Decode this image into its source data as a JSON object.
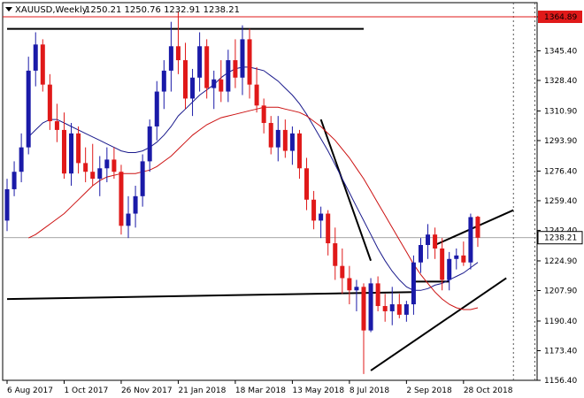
{
  "header": {
    "symbol": "XAUUSD,Weekly",
    "ohlc": "1250.21 1250.76 1232.91 1238.21"
  },
  "colors": {
    "bull": "#1a1aa8",
    "bear": "#e01919",
    "ma_fast": "#1a1a8c",
    "ma_slow": "#cc1111",
    "price_label_bg": "#ffffff",
    "high_label_bg": "#e01919",
    "grid": "#d8d8d8",
    "trendline": "#000000"
  },
  "chart_data": {
    "type": "candlestick",
    "timeframe": "Weekly",
    "ylim": [
      1156.4,
      1373
    ],
    "y_ticks": [
      "1364.89",
      "1345.40",
      "1328.40",
      "1310.90",
      "1293.90",
      "1276.40",
      "1259.40",
      "1242.40",
      "1224.90",
      "1207.90",
      "1190.40",
      "1173.40",
      "1156.40"
    ],
    "x_ticks": [
      "6 Aug 2017",
      "1 Oct 2017",
      "26 Nov 2017",
      "21 Jan 2018",
      "18 Mar 2018",
      "13 May 2018",
      "8 Jul 2018",
      "2 Sep 2018",
      "28 Oct 2018"
    ],
    "x_tick_index": [
      0,
      8,
      16,
      24,
      32,
      40,
      48,
      56,
      64
    ],
    "current_price": "1238.21",
    "high_line": "1364.89",
    "candles": [
      [
        1248,
        1272,
        1242,
        1266
      ],
      [
        1266,
        1282,
        1262,
        1276
      ],
      [
        1276,
        1298,
        1270,
        1290
      ],
      [
        1290,
        1342,
        1286,
        1334
      ],
      [
        1334,
        1356,
        1325,
        1349
      ],
      [
        1349,
        1352,
        1322,
        1326
      ],
      [
        1326,
        1332,
        1300,
        1305
      ],
      [
        1305,
        1315,
        1293,
        1300
      ],
      [
        1300,
        1310,
        1272,
        1275
      ],
      [
        1275,
        1304,
        1268,
        1298
      ],
      [
        1298,
        1302,
        1275,
        1281
      ],
      [
        1281,
        1290,
        1270,
        1276
      ],
      [
        1276,
        1292,
        1268,
        1272
      ],
      [
        1272,
        1285,
        1262,
        1278
      ],
      [
        1278,
        1290,
        1270,
        1283
      ],
      [
        1283,
        1290,
        1272,
        1276
      ],
      [
        1276,
        1280,
        1240,
        1245
      ],
      [
        1245,
        1262,
        1238,
        1252
      ],
      [
        1252,
        1268,
        1244,
        1262
      ],
      [
        1262,
        1286,
        1256,
        1282
      ],
      [
        1282,
        1306,
        1276,
        1302
      ],
      [
        1302,
        1328,
        1294,
        1322
      ],
      [
        1322,
        1340,
        1312,
        1334
      ],
      [
        1334,
        1362,
        1322,
        1348
      ],
      [
        1348,
        1368,
        1332,
        1340
      ],
      [
        1340,
        1350,
        1312,
        1318
      ],
      [
        1318,
        1335,
        1308,
        1330
      ],
      [
        1330,
        1356,
        1322,
        1348
      ],
      [
        1348,
        1352,
        1318,
        1324
      ],
      [
        1324,
        1334,
        1312,
        1329
      ],
      [
        1329,
        1340,
        1316,
        1322
      ],
      [
        1322,
        1346,
        1316,
        1340
      ],
      [
        1340,
        1352,
        1324,
        1330
      ],
      [
        1330,
        1360,
        1320,
        1352
      ],
      [
        1352,
        1358,
        1318,
        1326
      ],
      [
        1326,
        1336,
        1310,
        1314
      ],
      [
        1314,
        1318,
        1298,
        1304
      ],
      [
        1304,
        1308,
        1286,
        1290
      ],
      [
        1290,
        1308,
        1282,
        1300
      ],
      [
        1300,
        1306,
        1284,
        1288
      ],
      [
        1288,
        1302,
        1280,
        1298
      ],
      [
        1298,
        1300,
        1272,
        1278
      ],
      [
        1278,
        1284,
        1254,
        1260
      ],
      [
        1260,
        1265,
        1243,
        1248
      ],
      [
        1248,
        1256,
        1238,
        1252
      ],
      [
        1252,
        1254,
        1228,
        1235
      ],
      [
        1235,
        1244,
        1214,
        1222
      ],
      [
        1222,
        1232,
        1206,
        1215
      ],
      [
        1215,
        1222,
        1200,
        1208
      ],
      [
        1208,
        1214,
        1196,
        1210
      ],
      [
        1210,
        1212,
        1160,
        1185
      ],
      [
        1185,
        1215,
        1184,
        1212
      ],
      [
        1212,
        1216,
        1196,
        1199
      ],
      [
        1199,
        1206,
        1190,
        1196
      ],
      [
        1196,
        1210,
        1188,
        1200
      ],
      [
        1200,
        1206,
        1192,
        1194
      ],
      [
        1194,
        1202,
        1190,
        1200
      ],
      [
        1200,
        1228,
        1194,
        1224
      ],
      [
        1224,
        1238,
        1218,
        1234
      ],
      [
        1234,
        1246,
        1226,
        1240
      ],
      [
        1240,
        1244,
        1226,
        1232
      ],
      [
        1232,
        1238,
        1208,
        1214
      ],
      [
        1214,
        1230,
        1208,
        1226
      ],
      [
        1226,
        1232,
        1220,
        1228
      ],
      [
        1228,
        1236,
        1222,
        1224
      ],
      [
        1224,
        1252,
        1220,
        1250
      ],
      [
        1250.21,
        1250.76,
        1232.91,
        1238.21
      ]
    ],
    "series": [
      {
        "name": "",
        "color_key": "ma_fast",
        "values": [
          null,
          null,
          null,
          1296,
          1300,
          1304,
          1306,
          1306,
          1304,
          1302,
          1300,
          1298,
          1296,
          1294,
          1292,
          1290,
          1288,
          1287,
          1287,
          1288,
          1290,
          1293,
          1297,
          1302,
          1308,
          1312,
          1316,
          1320,
          1323,
          1326,
          1330,
          1333,
          1335,
          1336,
          1336,
          1335,
          1334,
          1331,
          1328,
          1324,
          1320,
          1315,
          1309,
          1302,
          1295,
          1288,
          1280,
          1272,
          1264,
          1256,
          1248,
          1240,
          1232,
          1225,
          1219,
          1214,
          1210,
          1208,
          1208,
          1209,
          1211,
          1212,
          1214,
          1216,
          1218,
          1221,
          1224
        ]
      },
      {
        "name": "",
        "color_key": "ma_slow",
        "values": [
          null,
          null,
          null,
          1238,
          1240,
          1243,
          1246,
          1249,
          1252,
          1256,
          1260,
          1264,
          1268,
          1271,
          1273,
          1274,
          1275,
          1275,
          1275,
          1276,
          1277,
          1279,
          1282,
          1285,
          1289,
          1293,
          1297,
          1300,
          1303,
          1305,
          1307,
          1308,
          1309,
          1310,
          1311,
          1312,
          1313,
          1313,
          1313,
          1312,
          1311,
          1310,
          1308,
          1305,
          1302,
          1298,
          1294,
          1289,
          1284,
          1278,
          1272,
          1265,
          1258,
          1251,
          1244,
          1237,
          1230,
          1223,
          1217,
          1212,
          1207,
          1203,
          1200,
          1198,
          1197,
          1197,
          1198
        ]
      }
    ],
    "trendlines": [
      {
        "x": [
          0,
          50
        ],
        "y": [
          1358,
          1358
        ]
      },
      {
        "x": [
          0,
          57
        ],
        "y": [
          1203,
          1207
        ]
      },
      {
        "x": [
          44,
          51
        ],
        "y": [
          1306,
          1225
        ]
      },
      {
        "x": [
          51,
          70
        ],
        "y": [
          1162,
          1215
        ]
      },
      {
        "x": [
          60,
          71
        ],
        "y": [
          1234,
          1254
        ]
      },
      {
        "x": [
          57,
          62
        ],
        "y": [
          1213,
          1213
        ]
      }
    ],
    "vlines_index": [
      71,
      74
    ]
  }
}
